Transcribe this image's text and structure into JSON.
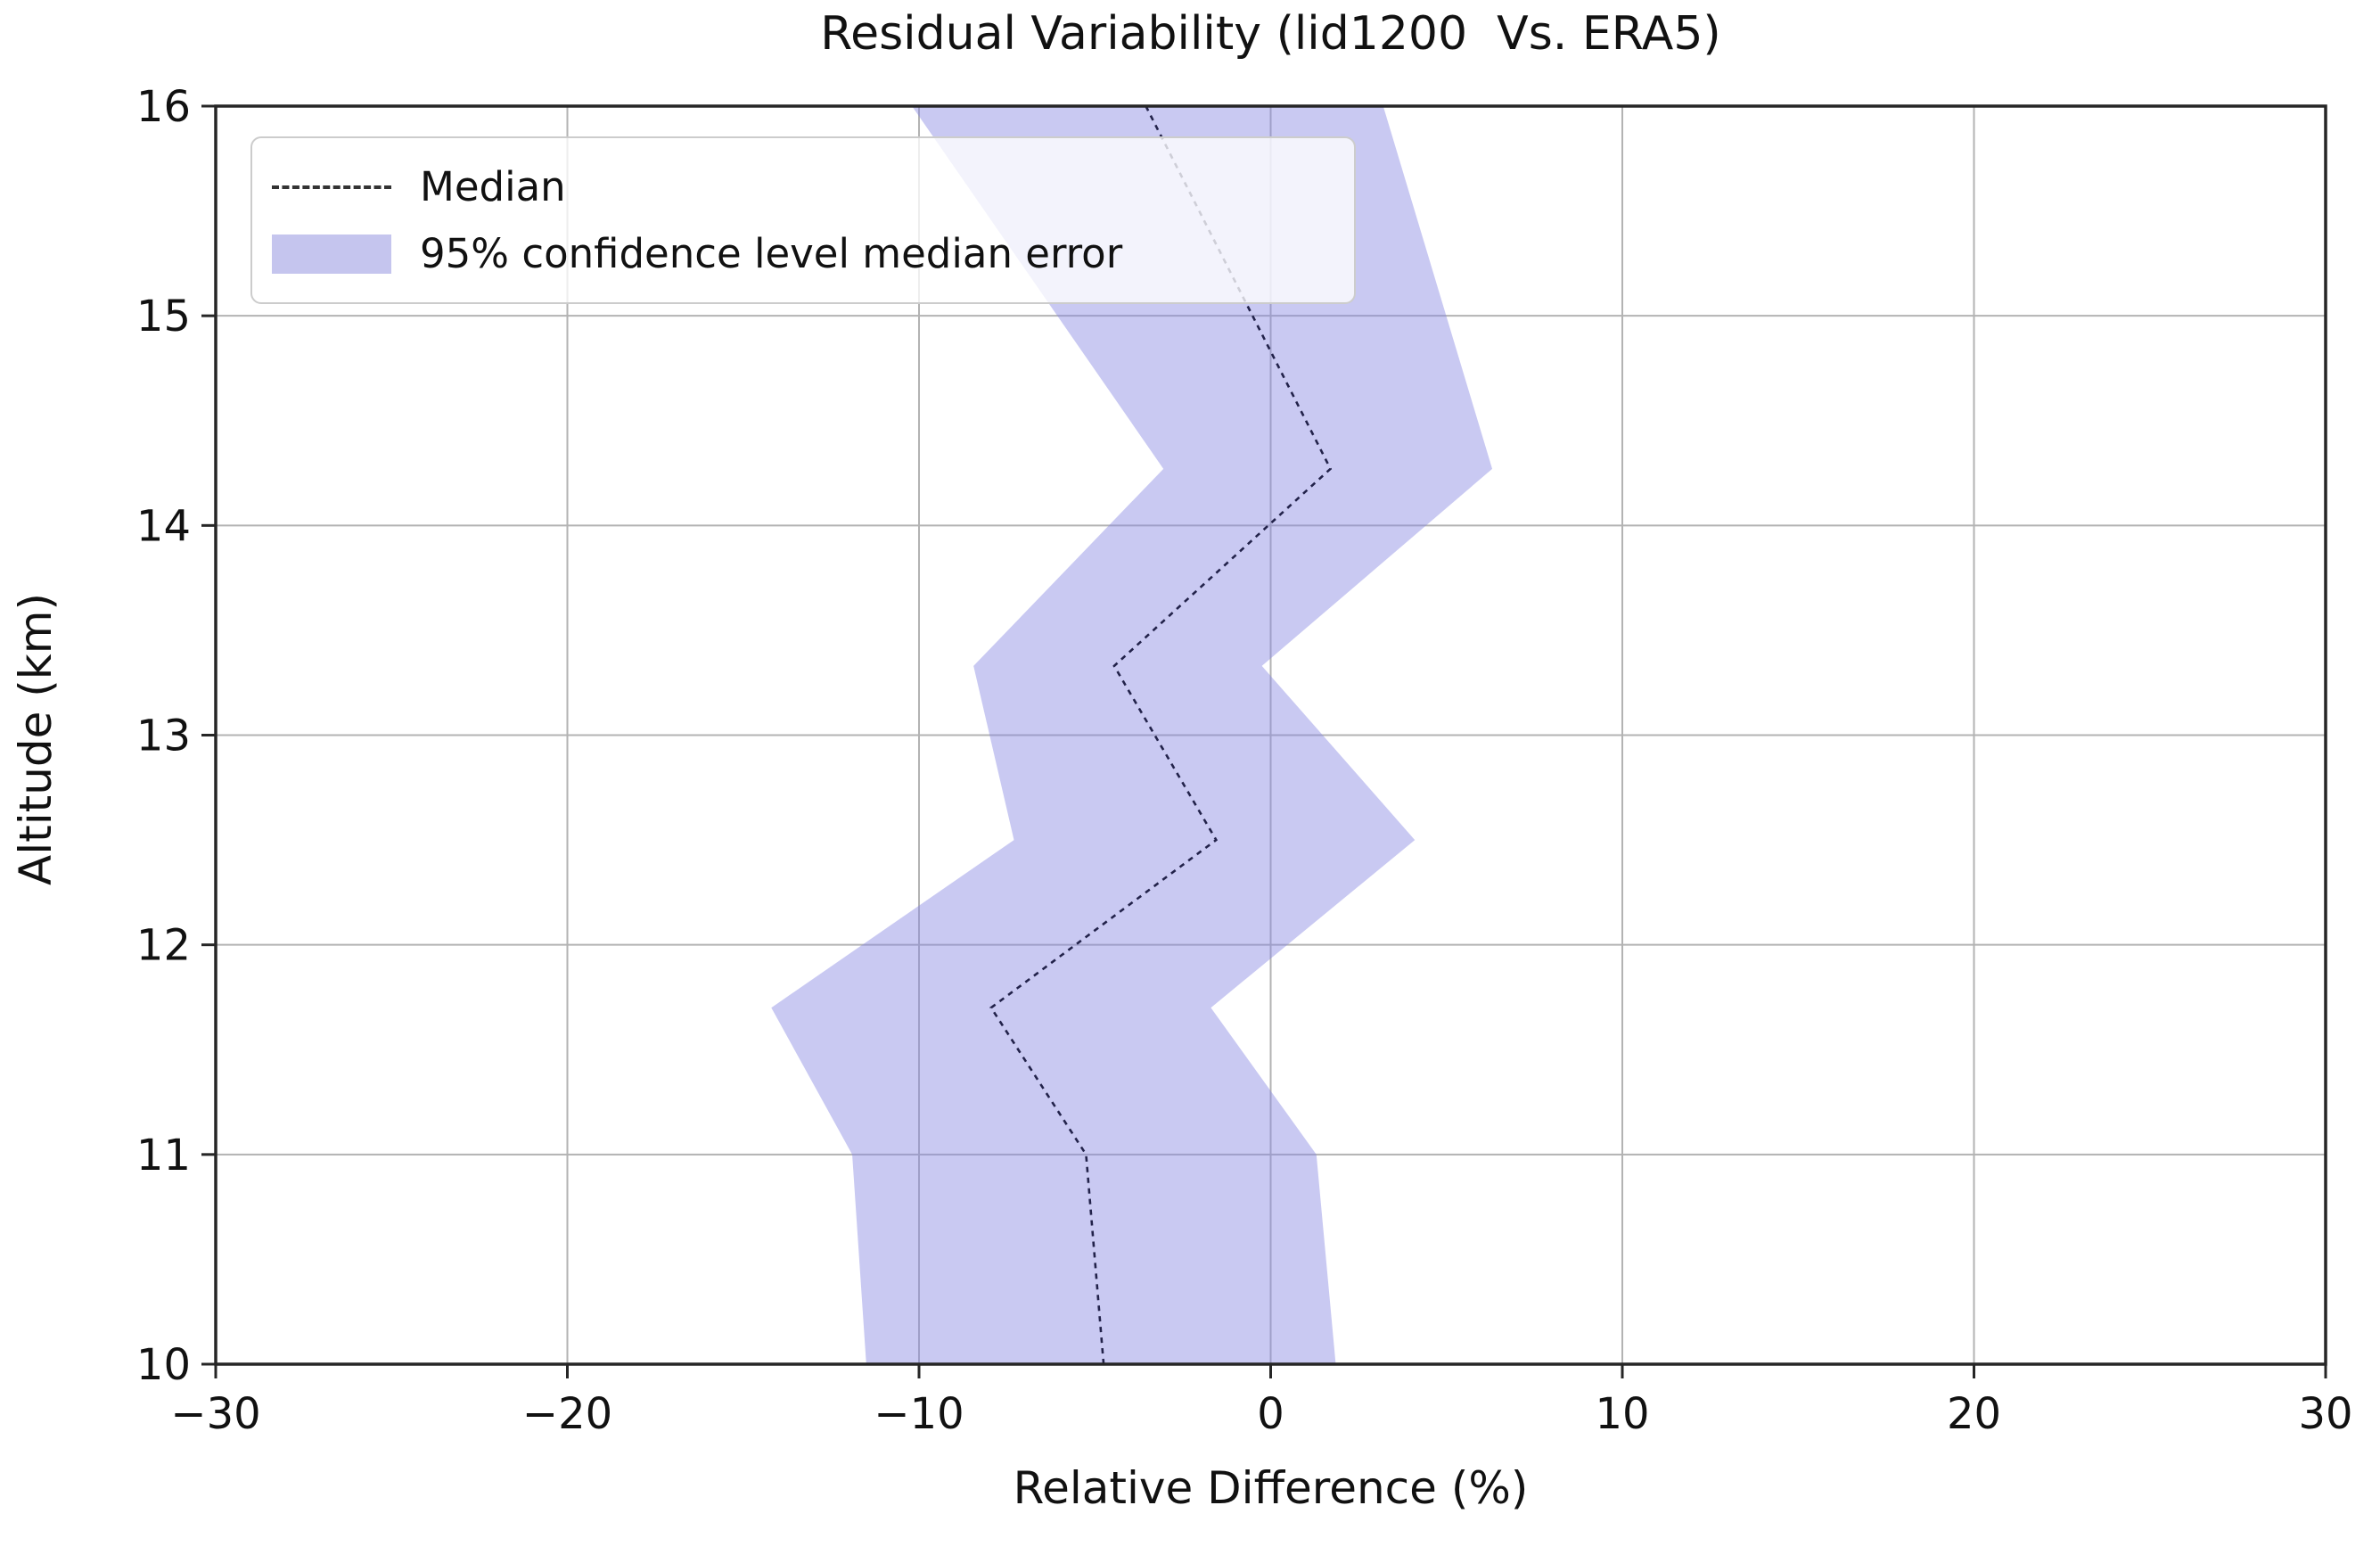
{
  "chart_data": {
    "type": "area",
    "title": "Residual Variability (lid1200  Vs. ERA5)",
    "xlabel": "Relative Difference (%)",
    "ylabel": "Altitude (km)",
    "xlim": [
      -30,
      30
    ],
    "ylim": [
      10,
      16
    ],
    "xticks": [
      -30,
      -20,
      -10,
      0,
      10,
      20,
      30
    ],
    "yticks": [
      10,
      11,
      12,
      13,
      14,
      15,
      16
    ],
    "grid": true,
    "legend_position": "upper left",
    "legend": [
      "Median",
      "95% confidence level median error"
    ],
    "series": {
      "altitude_km": [
        10,
        11,
        11.7,
        12.5,
        13.33,
        14.27,
        16
      ],
      "median_pct": [
        -4.75,
        -5.25,
        -7.95,
        -1.55,
        -4.45,
        1.7,
        -3.55
      ],
      "ci_lower_pct": [
        -11.5,
        -11.9,
        -14.2,
        -7.3,
        -8.45,
        -3.05,
        -10.2
      ],
      "ci_upper_pct": [
        1.85,
        1.3,
        -1.7,
        4.1,
        -0.25,
        6.3,
        3.2
      ]
    },
    "colors": {
      "band": "#8888e2",
      "band_opacity": 0.45,
      "median": "#22224a",
      "grid": "#b3b3b3",
      "spine": "#262626",
      "text": "#111111"
    }
  }
}
